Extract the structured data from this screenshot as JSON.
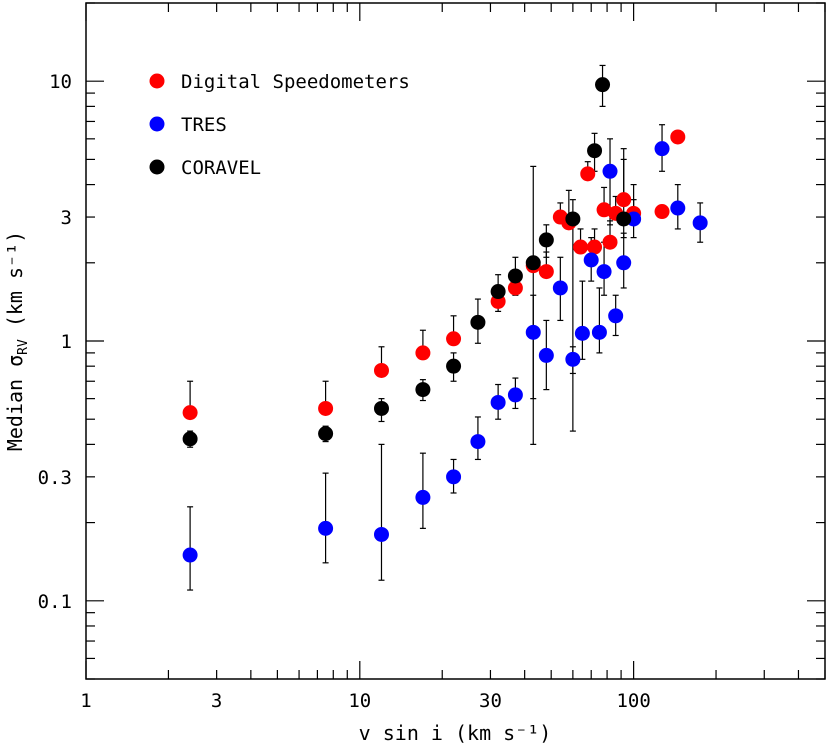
{
  "chart_data": {
    "type": "scatter",
    "xscale": "log",
    "yscale": "log",
    "xlim": [
      1,
      500
    ],
    "ylim": [
      0.05,
      20
    ],
    "xlabel": "v sin i (km s⁻¹)",
    "ylabel_main": "Median σ",
    "ylabel_sub": "RV",
    "ylabel_unit": " (km s⁻¹)",
    "xticks": [
      {
        "value": 1,
        "label": "1"
      },
      {
        "value": 3,
        "label": "3"
      },
      {
        "value": 10,
        "label": "10"
      },
      {
        "value": 30,
        "label": "30"
      },
      {
        "value": 100,
        "label": "100"
      }
    ],
    "yticks": [
      {
        "value": 0.1,
        "label": "0.1"
      },
      {
        "value": 0.3,
        "label": "0.3"
      },
      {
        "value": 1,
        "label": "1"
      },
      {
        "value": 3,
        "label": "3"
      },
      {
        "value": 10,
        "label": "10"
      }
    ],
    "legend_position": "top-left",
    "series": [
      {
        "name": "Digital Speedometers",
        "color": "#ff0000",
        "points": [
          {
            "x": 2.4,
            "y": 0.53,
            "lo": 0.53,
            "hi": 0.7
          },
          {
            "x": 7.5,
            "y": 0.55,
            "lo": 0.55,
            "hi": 0.7
          },
          {
            "x": 12,
            "y": 0.77,
            "lo": 0.77,
            "hi": 0.95
          },
          {
            "x": 17,
            "y": 0.9,
            "lo": 0.9,
            "hi": 1.1
          },
          {
            "x": 22,
            "y": 1.02,
            "lo": 1.02,
            "hi": 1.25
          },
          {
            "x": 32,
            "y": 1.42,
            "lo": 1.42,
            "hi": 1.55
          },
          {
            "x": 37,
            "y": 1.6,
            "lo": 1.6,
            "hi": 1.75
          },
          {
            "x": 43,
            "y": 1.95,
            "lo": 1.95,
            "hi": 2.1
          },
          {
            "x": 48,
            "y": 1.85,
            "lo": 1.85,
            "hi": 2.2
          },
          {
            "x": 54,
            "y": 3.0,
            "lo": 3.0,
            "hi": 3.4
          },
          {
            "x": 58,
            "y": 2.85,
            "lo": 2.85,
            "hi": 3.8
          },
          {
            "x": 64,
            "y": 2.3,
            "lo": 2.3,
            "hi": 2.7
          },
          {
            "x": 68,
            "y": 4.4,
            "lo": 4.4,
            "hi": 4.9
          },
          {
            "x": 72,
            "y": 2.3,
            "lo": 2.3,
            "hi": 2.7
          },
          {
            "x": 78,
            "y": 3.2,
            "lo": 3.2,
            "hi": 3.9
          },
          {
            "x": 82,
            "y": 2.4,
            "lo": 2.4,
            "hi": 2.9
          },
          {
            "x": 86,
            "y": 3.1,
            "lo": 3.1,
            "hi": 3.6
          },
          {
            "x": 92,
            "y": 3.5,
            "lo": 3.5,
            "hi": 5.0
          },
          {
            "x": 100,
            "y": 3.1,
            "lo": 3.1,
            "hi": 4.0
          },
          {
            "x": 127,
            "y": 3.15,
            "lo": 3.15,
            "hi": 3.3
          },
          {
            "x": 145,
            "y": 6.1,
            "lo": 6.1,
            "hi": 6.3
          }
        ]
      },
      {
        "name": "TRES",
        "color": "#0000ff",
        "points": [
          {
            "x": 2.4,
            "y": 0.15,
            "lo": 0.11,
            "hi": 0.23
          },
          {
            "x": 7.5,
            "y": 0.19,
            "lo": 0.14,
            "hi": 0.31
          },
          {
            "x": 12,
            "y": 0.18,
            "lo": 0.12,
            "hi": 0.4
          },
          {
            "x": 17,
            "y": 0.25,
            "lo": 0.19,
            "hi": 0.37
          },
          {
            "x": 22,
            "y": 0.3,
            "lo": 0.26,
            "hi": 0.35
          },
          {
            "x": 27,
            "y": 0.41,
            "lo": 0.35,
            "hi": 0.51
          },
          {
            "x": 32,
            "y": 0.58,
            "lo": 0.5,
            "hi": 0.68
          },
          {
            "x": 37,
            "y": 0.62,
            "lo": 0.55,
            "hi": 0.72
          },
          {
            "x": 43,
            "y": 1.08,
            "lo": 0.6,
            "hi": 1.5
          },
          {
            "x": 48,
            "y": 0.88,
            "lo": 0.65,
            "hi": 1.2
          },
          {
            "x": 54,
            "y": 1.6,
            "lo": 1.2,
            "hi": 2.1
          },
          {
            "x": 60,
            "y": 0.85,
            "lo": 0.75,
            "hi": 0.95
          },
          {
            "x": 65,
            "y": 1.07,
            "lo": 0.85,
            "hi": 1.7
          },
          {
            "x": 70,
            "y": 2.05,
            "lo": 1.7,
            "hi": 2.5
          },
          {
            "x": 75,
            "y": 1.08,
            "lo": 0.9,
            "hi": 1.6
          },
          {
            "x": 78,
            "y": 1.85,
            "lo": 1.5,
            "hi": 2.4
          },
          {
            "x": 82,
            "y": 4.5,
            "lo": 2.8,
            "hi": 6.0
          },
          {
            "x": 86,
            "y": 1.25,
            "lo": 1.05,
            "hi": 1.5
          },
          {
            "x": 92,
            "y": 2.0,
            "lo": 1.6,
            "hi": 2.6
          },
          {
            "x": 100,
            "y": 2.95,
            "lo": 2.5,
            "hi": 3.5
          },
          {
            "x": 127,
            "y": 5.5,
            "lo": 4.5,
            "hi": 6.8
          },
          {
            "x": 145,
            "y": 3.25,
            "lo": 2.7,
            "hi": 4.0
          },
          {
            "x": 175,
            "y": 2.85,
            "lo": 2.4,
            "hi": 3.4
          }
        ]
      },
      {
        "name": "CORAVEL",
        "color": "#000000",
        "points": [
          {
            "x": 2.4,
            "y": 0.42,
            "lo": 0.39,
            "hi": 0.45
          },
          {
            "x": 7.5,
            "y": 0.44,
            "lo": 0.41,
            "hi": 0.47
          },
          {
            "x": 12,
            "y": 0.55,
            "lo": 0.49,
            "hi": 0.6
          },
          {
            "x": 17,
            "y": 0.65,
            "lo": 0.59,
            "hi": 0.71
          },
          {
            "x": 22,
            "y": 0.8,
            "lo": 0.7,
            "hi": 0.9
          },
          {
            "x": 27,
            "y": 1.18,
            "lo": 0.98,
            "hi": 1.45
          },
          {
            "x": 32,
            "y": 1.55,
            "lo": 1.3,
            "hi": 1.8
          },
          {
            "x": 37,
            "y": 1.78,
            "lo": 1.5,
            "hi": 2.1
          },
          {
            "x": 43,
            "y": 2.0,
            "lo": 0.4,
            "hi": 4.7
          },
          {
            "x": 48,
            "y": 2.45,
            "lo": 2.1,
            "hi": 2.8
          },
          {
            "x": 60,
            "y": 2.95,
            "lo": 0.45,
            "hi": 3.5
          },
          {
            "x": 72,
            "y": 5.4,
            "lo": 4.5,
            "hi": 6.3
          },
          {
            "x": 77,
            "y": 9.7,
            "lo": 8.0,
            "hi": 11.5
          },
          {
            "x": 92,
            "y": 2.95,
            "lo": 2.5,
            "hi": 5.5
          }
        ]
      }
    ]
  }
}
